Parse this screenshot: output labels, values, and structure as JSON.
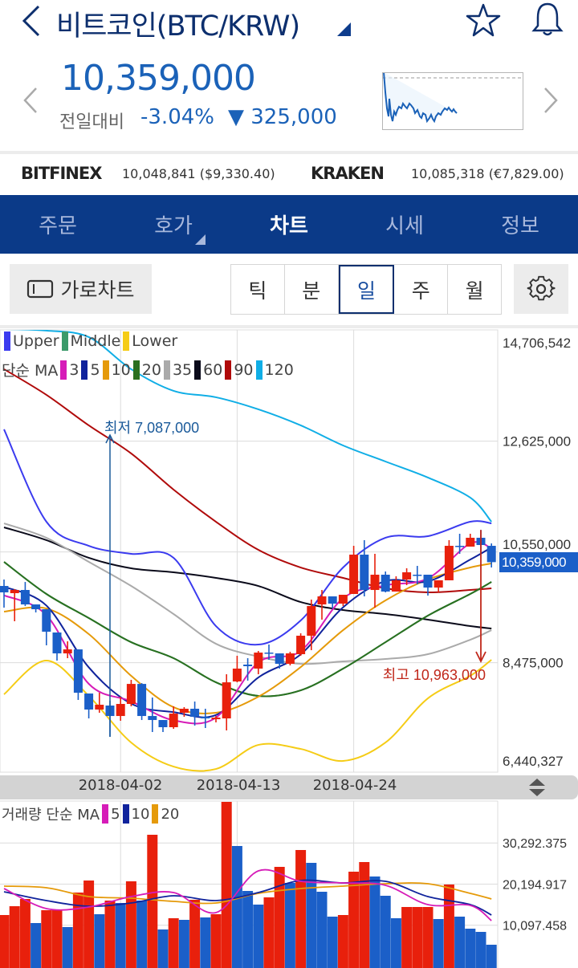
{
  "header": {
    "title": "비트코인(BTC/KRW)",
    "back_icon": "chevron-left-icon",
    "favorite_icon": "star-icon",
    "alert_icon": "bell-icon"
  },
  "quote": {
    "price": "10,359,000",
    "change_label": "전일대비",
    "change_pct": "-3.04%",
    "change_amount": "▼ 325,000",
    "color": "#1b62b8"
  },
  "exchanges": [
    {
      "name": "BITFINEX",
      "value": "10,048,841 ($9,330.40)"
    },
    {
      "name": "KRAKEN",
      "value": "10,085,318 (€7,829.00)"
    }
  ],
  "tabs": [
    {
      "label": "주문",
      "selected": false
    },
    {
      "label": "호가",
      "selected": false
    },
    {
      "label": "차트",
      "selected": true
    },
    {
      "label": "시세",
      "selected": false
    },
    {
      "label": "정보",
      "selected": false
    }
  ],
  "toolbar": {
    "landscape_label": "가로차트",
    "periods": [
      {
        "label": "틱",
        "selected": false
      },
      {
        "label": "분",
        "selected": false
      },
      {
        "label": "일",
        "selected": true
      },
      {
        "label": "주",
        "selected": false
      },
      {
        "label": "월",
        "selected": false
      }
    ],
    "settings_icon": "gear-icon"
  },
  "legend": {
    "bollinger": [
      {
        "label": "Upper",
        "color": "#3b3bef"
      },
      {
        "label": "Middle",
        "color": "#3a9a6a"
      },
      {
        "label": "Lower",
        "color": "#f5cc16"
      }
    ],
    "ma_label": "단순 MA",
    "ma": [
      {
        "label": "3",
        "color": "#d61cb8"
      },
      {
        "label": "5",
        "color": "#10239c"
      },
      {
        "label": "10",
        "color": "#e59a0a"
      },
      {
        "label": "20",
        "color": "#2a7020"
      },
      {
        "label": "35",
        "color": "#aaaaaa"
      },
      {
        "label": "60",
        "color": "#0a0a1a"
      },
      {
        "label": "90",
        "color": "#b00a0a"
      },
      {
        "label": "120",
        "color": "#10aee6"
      }
    ],
    "volume_label": "거래량 단순 MA",
    "volume_ma": [
      {
        "label": "5",
        "color": "#d61cb8"
      },
      {
        "label": "10",
        "color": "#10239c"
      },
      {
        "label": "20",
        "color": "#e59a0a"
      }
    ]
  },
  "chart_data": {
    "type": "candlestick",
    "up_color": "#e8200c",
    "down_color": "#1b5fc8",
    "price_axis": {
      "ticks": [
        "14,706,542",
        "12,625,000",
        "10,550,000",
        "8,475,000",
        "6,440,327"
      ],
      "tick_values": [
        14706542,
        12625000,
        10550000,
        8475000,
        6440327
      ],
      "range": [
        6440327,
        14706542
      ]
    },
    "date_ticks": [
      "2018-04-02",
      "2018-04-13",
      "2018-04-24"
    ],
    "current_price_label": "10,359,000",
    "annotations": {
      "low": {
        "label": "최저 7,087,000",
        "date": "2018-04-01",
        "value": 7087000,
        "color": "#1a5a9a"
      },
      "high": {
        "label": "최고 10,963,000",
        "date": "2018-05-06",
        "value": 10963000,
        "color": "#c0271a"
      }
    },
    "candles_fields": [
      "date",
      "open",
      "high",
      "low",
      "close"
    ],
    "candles": [
      [
        "2018-03-22",
        9913000,
        10034000,
        9507000,
        9793000
      ],
      [
        "2018-03-23",
        9778000,
        9853000,
        9252000,
        9838000
      ],
      [
        "2018-03-24",
        9838000,
        9988000,
        9537000,
        9567000
      ],
      [
        "2018-03-25",
        9567000,
        9567000,
        9417000,
        9477000
      ],
      [
        "2018-03-26",
        9477000,
        9477000,
        8801000,
        9056000
      ],
      [
        "2018-03-27",
        9041000,
        9041000,
        8515000,
        8650000
      ],
      [
        "2018-03-28",
        8650000,
        8876000,
        8560000,
        8725000
      ],
      [
        "2018-03-29",
        8725000,
        8725000,
        7778000,
        7913000
      ],
      [
        "2018-03-30",
        7898000,
        7898000,
        7432000,
        7598000
      ],
      [
        "2018-03-31",
        7598000,
        7913000,
        7538000,
        7688000
      ],
      [
        "2018-04-01",
        7673000,
        7763000,
        7087000,
        7477000
      ],
      [
        "2018-04-02",
        7477000,
        7838000,
        7387000,
        7703000
      ],
      [
        "2018-04-03",
        7703000,
        8154000,
        7658000,
        8078000
      ],
      [
        "2018-04-04",
        8078000,
        8093000,
        7402000,
        7477000
      ],
      [
        "2018-04-05",
        7477000,
        7823000,
        7177000,
        7402000
      ],
      [
        "2018-04-06",
        7402000,
        7402000,
        7177000,
        7267000
      ],
      [
        "2018-04-07",
        7267000,
        7658000,
        7237000,
        7522000
      ],
      [
        "2018-04-08",
        7538000,
        7643000,
        7462000,
        7613000
      ],
      [
        "2018-04-09",
        7613000,
        7748000,
        7297000,
        7462000
      ],
      [
        "2018-04-10",
        7462000,
        7613000,
        7252000,
        7432000
      ],
      [
        "2018-04-11",
        7417000,
        7477000,
        7357000,
        7447000
      ],
      [
        "2018-04-12",
        7432000,
        8259000,
        7207000,
        8108000
      ],
      [
        "2018-04-13",
        8124000,
        8605000,
        8108000,
        8365000
      ],
      [
        "2018-04-14",
        8440000,
        8560000,
        8139000,
        8410000
      ],
      [
        "2018-04-15",
        8365000,
        8695000,
        8259000,
        8665000
      ],
      [
        "2018-04-16",
        8665000,
        8816000,
        8530000,
        8650000
      ],
      [
        "2018-04-17",
        8650000,
        8650000,
        8365000,
        8455000
      ],
      [
        "2018-04-18",
        8455000,
        8680000,
        8425000,
        8650000
      ],
      [
        "2018-04-19",
        8635000,
        9026000,
        8605000,
        8981000
      ],
      [
        "2018-04-20",
        8981000,
        9658000,
        8710000,
        9537000
      ],
      [
        "2018-04-21",
        9567000,
        9838000,
        9282000,
        9718000
      ],
      [
        "2018-04-22",
        9718000,
        9718000,
        9492000,
        9582000
      ],
      [
        "2018-04-23",
        9582000,
        9748000,
        9537000,
        9748000
      ],
      [
        "2018-04-24",
        9763000,
        10665000,
        9763000,
        10500000
      ],
      [
        "2018-04-25",
        10500000,
        10771000,
        9718000,
        9838000
      ],
      [
        "2018-04-26",
        9838000,
        10515000,
        9507000,
        10124000
      ],
      [
        "2018-04-27",
        10124000,
        10184000,
        9793000,
        9808000
      ],
      [
        "2018-04-28",
        9808000,
        10094000,
        9808000,
        10019000
      ],
      [
        "2018-04-29",
        10034000,
        10244000,
        9928000,
        10169000
      ],
      [
        "2018-04-30",
        10124000,
        10289000,
        9943000,
        10109000
      ],
      [
        "2018-05-01",
        10124000,
        10124000,
        9733000,
        9883000
      ],
      [
        "2018-05-02",
        9883000,
        10019000,
        9793000,
        10019000
      ],
      [
        "2018-05-03",
        10019000,
        10771000,
        10019000,
        10665000
      ],
      [
        "2018-05-04",
        10665000,
        10891000,
        10515000,
        10650000
      ],
      [
        "2018-05-05",
        10650000,
        10891000,
        10650000,
        10816000
      ],
      [
        "2018-05-06",
        10816000,
        10963000,
        10515000,
        10680000
      ],
      [
        "2018-05-07",
        10665000,
        10710000,
        10259000,
        10359000
      ]
    ],
    "line_dates": [
      "2018-03-22",
      "2018-03-26",
      "2018-03-30",
      "2018-04-03",
      "2018-04-07",
      "2018-04-11",
      "2018-04-15",
      "2018-04-19",
      "2018-04-23",
      "2018-04-27",
      "2018-05-01",
      "2018-05-05",
      "2018-05-07"
    ],
    "lines": [
      {
        "name": "120",
        "color": "#10aee6",
        "values": [
          14726000,
          14696000,
          14576000,
          13974000,
          13568000,
          13448000,
          13222000,
          12921000,
          12545000,
          12244000,
          11944000,
          11568000,
          11116000
        ]
      },
      {
        "name": "90",
        "color": "#b00a0a",
        "values": [
          13974000,
          13493000,
          12921000,
          12395000,
          11718000,
          11116000,
          10590000,
          10259000,
          10064000,
          9868000,
          9793000,
          9838000,
          9868000
        ]
      },
      {
        "name": "60",
        "color": "#0a0a1a",
        "values": [
          11011000,
          10771000,
          10440000,
          10244000,
          10169000,
          10064000,
          9913000,
          9612000,
          9462000,
          9387000,
          9282000,
          9161000,
          9116000
        ]
      },
      {
        "name": "35",
        "color": "#aaaaaa",
        "values": [
          11086000,
          10816000,
          10364000,
          9913000,
          9387000,
          8830000,
          8590000,
          8454000,
          8500000,
          8545000,
          8635000,
          8906000,
          9086000
        ]
      },
      {
        "name": "Upper",
        "color": "#3b3bef",
        "values": [
          12846000,
          11116000,
          10665000,
          10515000,
          10440000,
          9161000,
          8815000,
          9267000,
          10259000,
          10816000,
          10846000,
          11116000,
          11086000
        ]
      },
      {
        "name": "Lower",
        "color": "#f5cc16",
        "values": [
          7883000,
          8515000,
          7853000,
          6980000,
          6529000,
          6484000,
          6935000,
          6860000,
          6635000,
          6980000,
          7808000,
          8229000,
          8530000
        ]
      },
      {
        "name": "Middle",
        "color": "#3a9a6a",
        "values": [
          10364000,
          9763000,
          9312000,
          8860000,
          8560000,
          8108000,
          7853000,
          7958000,
          8364000,
          8860000,
          9357000,
          9763000,
          9988000
        ]
      },
      {
        "name": "20",
        "color": "#2a7020",
        "values": [
          10364000,
          9763000,
          9312000,
          8860000,
          8560000,
          8108000,
          7853000,
          7958000,
          8364000,
          8860000,
          9357000,
          9763000,
          9988000
        ]
      },
      {
        "name": "10",
        "color": "#e59a0a",
        "values": [
          9432000,
          9492000,
          9011000,
          8229000,
          7642000,
          7537000,
          7838000,
          8394000,
          9086000,
          9643000,
          10034000,
          10259000,
          10334000
        ]
      },
      {
        "name": "5",
        "color": "#10239c",
        "values": [
          9900000,
          9546000,
          8388000,
          7709000,
          7549000,
          7495000,
          8199000,
          8632000,
          9513000,
          10004000,
          9998000,
          10407000,
          10634000
        ]
      },
      {
        "name": "3",
        "color": "#d61cb8",
        "values": [
          9738000,
          9367000,
          8079000,
          7753000,
          7397000,
          7447000,
          8480000,
          8695000,
          9683000,
          9923000,
          10054000,
          10710000,
          10618000
        ]
      }
    ],
    "volume": {
      "axis_ticks": [
        "30,292.375",
        "20,194.917",
        "10,097.458"
      ],
      "axis_values": [
        30292.375,
        20194.917,
        10097.458
      ],
      "values": [
        12608,
        14775,
        16548,
        10638,
        13790,
        13987,
        9653,
        18124,
        21079,
        12805,
        16154,
        15563,
        20882,
        16154,
        32308,
        9062,
        11820,
        11426,
        16351,
        12017,
        12805,
        40385,
        29550,
        18518,
        15169,
        16942,
        24428,
        20488,
        28565,
        25413,
        18321,
        12214,
        12608,
        23246,
        25610,
        22064,
        17336,
        11820,
        14578,
        14578,
        14578,
        11623,
        20094,
        12214,
        9259,
        8471,
        5319
      ],
      "direction": [
        "up",
        "up",
        "up",
        "down",
        "up",
        "up",
        "down",
        "up",
        "up",
        "down",
        "up",
        "down",
        "up",
        "down",
        "up",
        "down",
        "up",
        "down",
        "up",
        "down",
        "up",
        "up",
        "down",
        "down",
        "down",
        "up",
        "up",
        "down",
        "up",
        "down",
        "down",
        "down",
        "up",
        "up",
        "up",
        "down",
        "down",
        "down",
        "up",
        "up",
        "up",
        "down",
        "up",
        "down",
        "down",
        "down",
        "down"
      ],
      "lines": [
        {
          "name": "20",
          "color": "#e59a0a",
          "values": [
            19700,
            19306,
            17139,
            16745,
            15957,
            15563,
            17927,
            19109,
            19700,
            20291,
            20291,
            17927,
            16548
          ]
        },
        {
          "name": "10",
          "color": "#10239c",
          "values": [
            18321,
            16154,
            14775,
            15563,
            17336,
            16154,
            18124,
            21079,
            20488,
            20882,
            17139,
            15169,
            12608
          ]
        },
        {
          "name": "5",
          "color": "#d61cb8",
          "values": [
            19109,
            14184,
            14578,
            17139,
            18124,
            13199,
            23443,
            20882,
            20488,
            19897,
            15169,
            14972,
            11229
          ]
        }
      ]
    }
  }
}
